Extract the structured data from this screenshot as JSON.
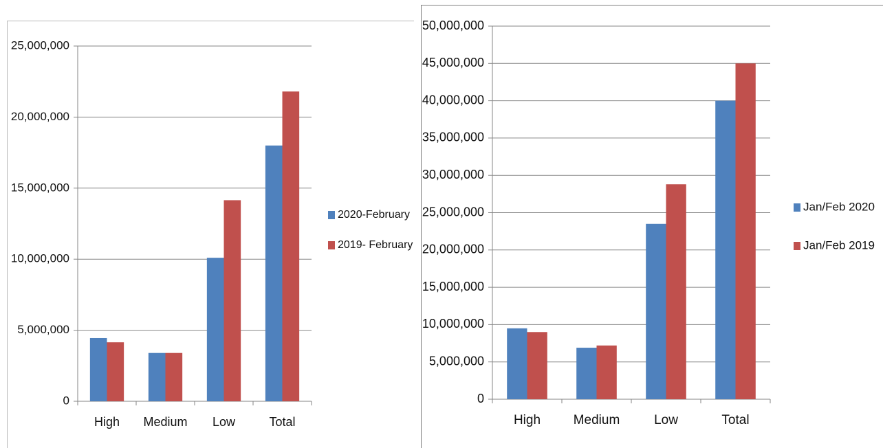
{
  "colors": {
    "series_1": "#4f81bd",
    "series_2": "#c0504d",
    "gridline": "#868686",
    "axis": "#868686"
  },
  "chart_data": [
    {
      "type": "bar",
      "title": "",
      "xlabel": "",
      "ylabel": "",
      "categories": [
        "High",
        "Medium",
        "Low",
        "Total"
      ],
      "series": [
        {
          "name": "2020-February",
          "values": [
            4450000,
            3400000,
            10100000,
            18000000
          ]
        },
        {
          "name": "2019- February",
          "values": [
            4150000,
            3400000,
            14150000,
            21800000
          ]
        }
      ],
      "ylim": [
        0,
        25000000
      ],
      "yticks": [
        0,
        5000000,
        10000000,
        15000000,
        20000000,
        25000000
      ],
      "ytick_labels": [
        "0",
        "5,000,000",
        "10,000,000",
        "15,000,000",
        "20,000,000",
        "25,000,000"
      ],
      "grid": true,
      "legend_position": "right"
    },
    {
      "type": "bar",
      "title": "",
      "xlabel": "",
      "ylabel": "",
      "categories": [
        "High",
        "Medium",
        "Low",
        "Total"
      ],
      "series": [
        {
          "name": "Jan/Feb 2020",
          "values": [
            9500000,
            6900000,
            23500000,
            40000000
          ]
        },
        {
          "name": "Jan/Feb 2019",
          "values": [
            9000000,
            7200000,
            28800000,
            45000000
          ]
        }
      ],
      "ylim": [
        0,
        50000000
      ],
      "yticks": [
        0,
        5000000,
        10000000,
        15000000,
        20000000,
        25000000,
        30000000,
        35000000,
        40000000,
        45000000,
        50000000
      ],
      "ytick_labels": [
        "0",
        "5,000,000",
        "10,000,000",
        "15,000,000",
        "20,000,000",
        "25,000,000",
        "30,000,000",
        "35,000,000",
        "40,000,000",
        "45,000,000",
        "50,000,000"
      ],
      "grid": true,
      "legend_position": "right"
    }
  ]
}
